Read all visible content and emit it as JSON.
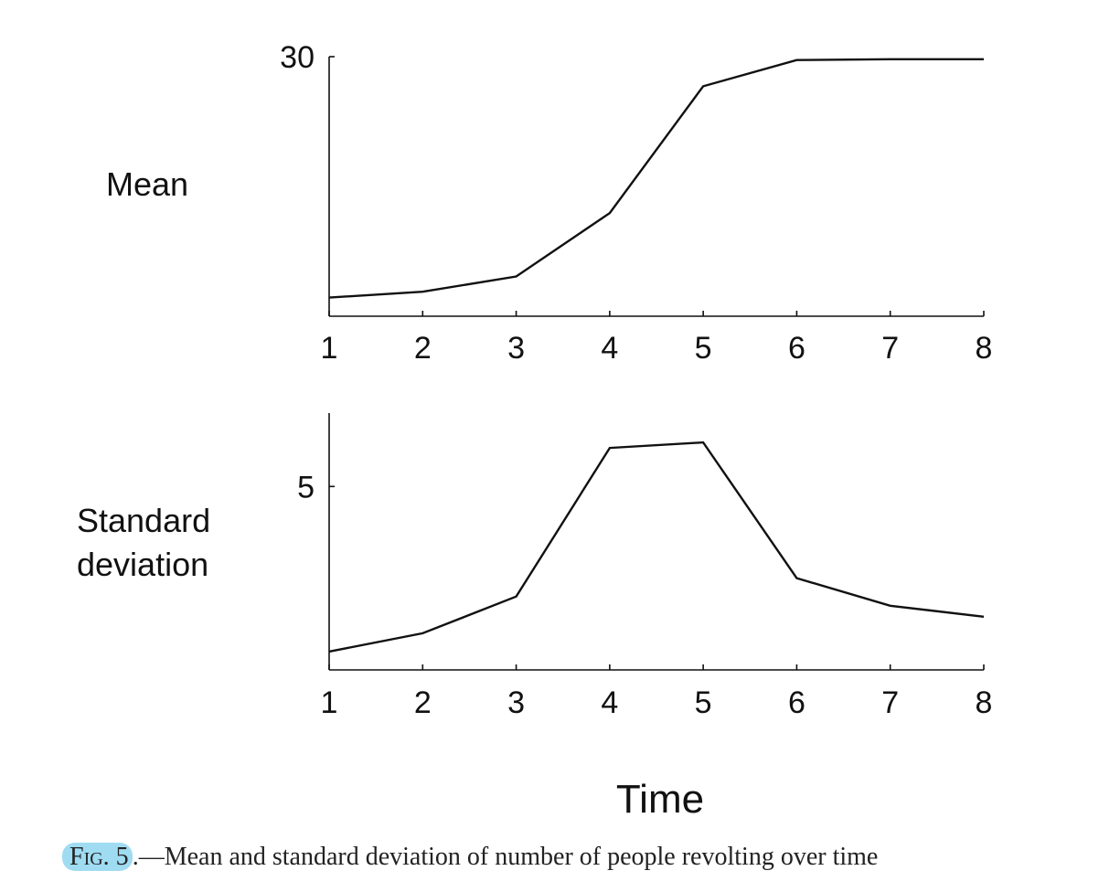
{
  "chart_data": [
    {
      "type": "line",
      "ylabel": "Mean",
      "xlabel": "",
      "x": [
        1,
        2,
        3,
        4,
        5,
        6,
        7,
        8
      ],
      "series": [
        {
          "values": [
            1.5,
            2.2,
            4.0,
            11.5,
            26.5,
            29.6,
            29.7,
            29.7
          ]
        }
      ],
      "xticks": [
        "1",
        "2",
        "3",
        "4",
        "5",
        "6",
        "7",
        "8"
      ],
      "yticks": [
        {
          "value": 30,
          "label": "30"
        }
      ],
      "xlim": [
        1,
        8
      ],
      "ylim": [
        -0.7,
        30
      ],
      "grid": false
    },
    {
      "type": "line",
      "ylabel": [
        "Standard",
        "deviation"
      ],
      "xlabel": "Time",
      "x": [
        1,
        2,
        3,
        4,
        5,
        6,
        7,
        8
      ],
      "series": [
        {
          "values": [
            0.5,
            1.0,
            2.0,
            6.05,
            6.2,
            2.5,
            1.75,
            1.45
          ]
        }
      ],
      "xticks": [
        "1",
        "2",
        "3",
        "4",
        "5",
        "6",
        "7",
        "8"
      ],
      "yticks": [
        {
          "value": 5,
          "label": "5"
        }
      ],
      "xlim": [
        1,
        8
      ],
      "ylim": [
        0,
        7
      ],
      "grid": false
    }
  ],
  "caption": {
    "label": "Fig. 5",
    "text": ".—Mean and standard deviation of number of people revolting over time"
  }
}
